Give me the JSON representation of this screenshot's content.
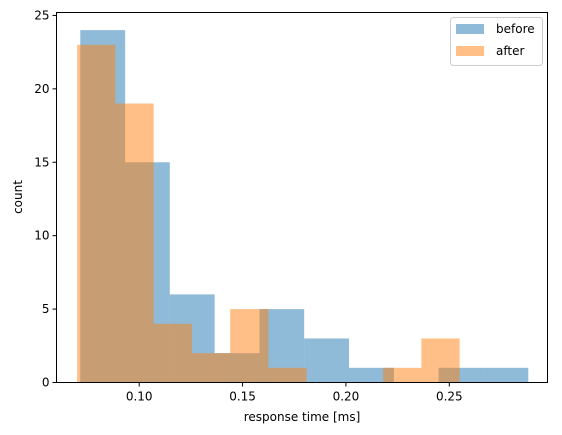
{
  "chart_data": {
    "type": "bar",
    "subtype": "histogram",
    "title": "",
    "xlabel": "response time [ms]",
    "ylabel": "count",
    "xlim": [
      0.06,
      0.2975
    ],
    "ylim": [
      0,
      25.2
    ],
    "xticks": [
      0.1,
      0.15,
      0.2,
      0.25
    ],
    "xtick_labels": [
      "0.10",
      "0.15",
      "0.20",
      "0.25"
    ],
    "yticks": [
      0,
      5,
      10,
      15,
      20,
      25
    ],
    "ytick_labels": [
      "0",
      "5",
      "10",
      "15",
      "20",
      "25"
    ],
    "grid": false,
    "legend_position": "top-right",
    "series": [
      {
        "name": "before",
        "color": "#1f77b4",
        "alpha": 0.5,
        "bin_edges": [
          0.0715,
          0.0932,
          0.1148,
          0.1365,
          0.1582,
          0.1798,
          0.2015,
          0.2232,
          0.2448,
          0.2665,
          0.2882
        ],
        "counts": [
          24,
          15,
          6,
          2,
          5,
          3,
          1,
          0,
          1,
          1
        ]
      },
      {
        "name": "after",
        "color": "#ff7f0e",
        "alpha": 0.5,
        "bin_edges": [
          0.07,
          0.0885,
          0.107,
          0.1255,
          0.144,
          0.1625,
          0.181,
          0.1995,
          0.218,
          0.2365,
          0.255
        ],
        "counts": [
          23,
          19,
          4,
          2,
          5,
          1,
          0,
          0,
          1,
          3
        ]
      }
    ]
  }
}
